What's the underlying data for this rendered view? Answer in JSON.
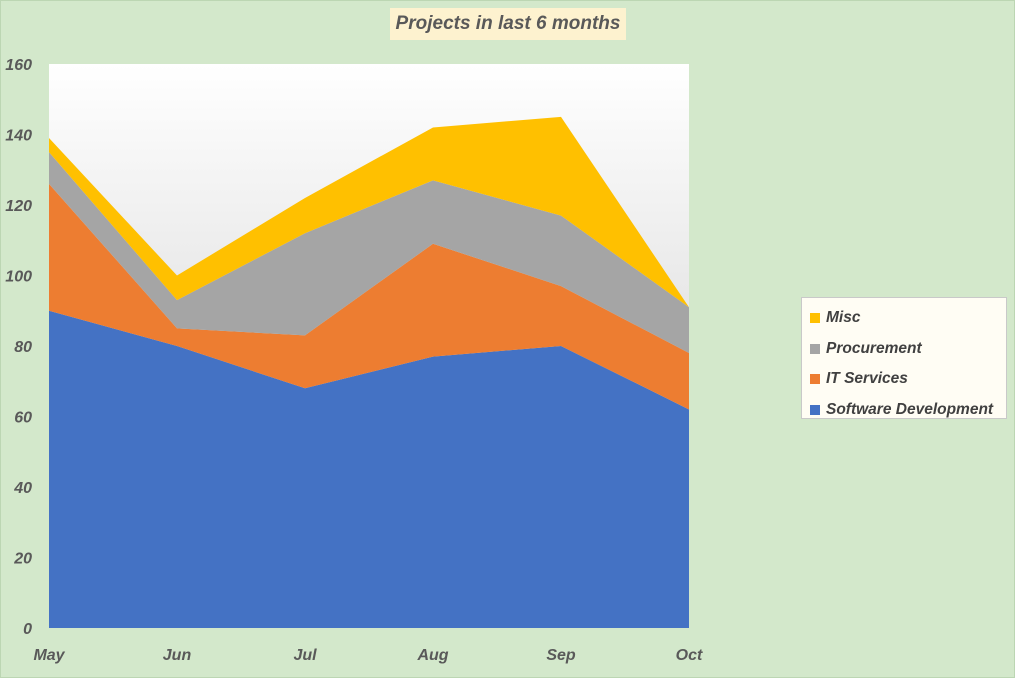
{
  "chart_data": {
    "type": "area",
    "stacked": true,
    "title": "Projects in last 6 months",
    "categories": [
      "May",
      "Jun",
      "Jul",
      "Aug",
      "Sep",
      "Oct"
    ],
    "ylim": [
      0,
      160
    ],
    "yticks": [
      "0",
      "20",
      "40",
      "60",
      "80",
      "100",
      "120",
      "140",
      "160"
    ],
    "grid": false,
    "legend_position": "right",
    "series": [
      {
        "name": "Software Development",
        "values": [
          90,
          80,
          68,
          77,
          80,
          62
        ],
        "color": "#4472c4"
      },
      {
        "name": "IT Services",
        "values": [
          36,
          5,
          15,
          32,
          17,
          16
        ],
        "color": "#ed7d31"
      },
      {
        "name": "Procurement",
        "values": [
          9,
          8,
          29,
          18,
          20,
          13
        ],
        "color": "#a5a5a5"
      },
      {
        "name": "Misc",
        "values": [
          4,
          7,
          10,
          15,
          28,
          0
        ],
        "color": "#ffc000"
      }
    ],
    "legend_order": [
      "Misc",
      "Procurement",
      "IT Services",
      "Software Development"
    ]
  }
}
